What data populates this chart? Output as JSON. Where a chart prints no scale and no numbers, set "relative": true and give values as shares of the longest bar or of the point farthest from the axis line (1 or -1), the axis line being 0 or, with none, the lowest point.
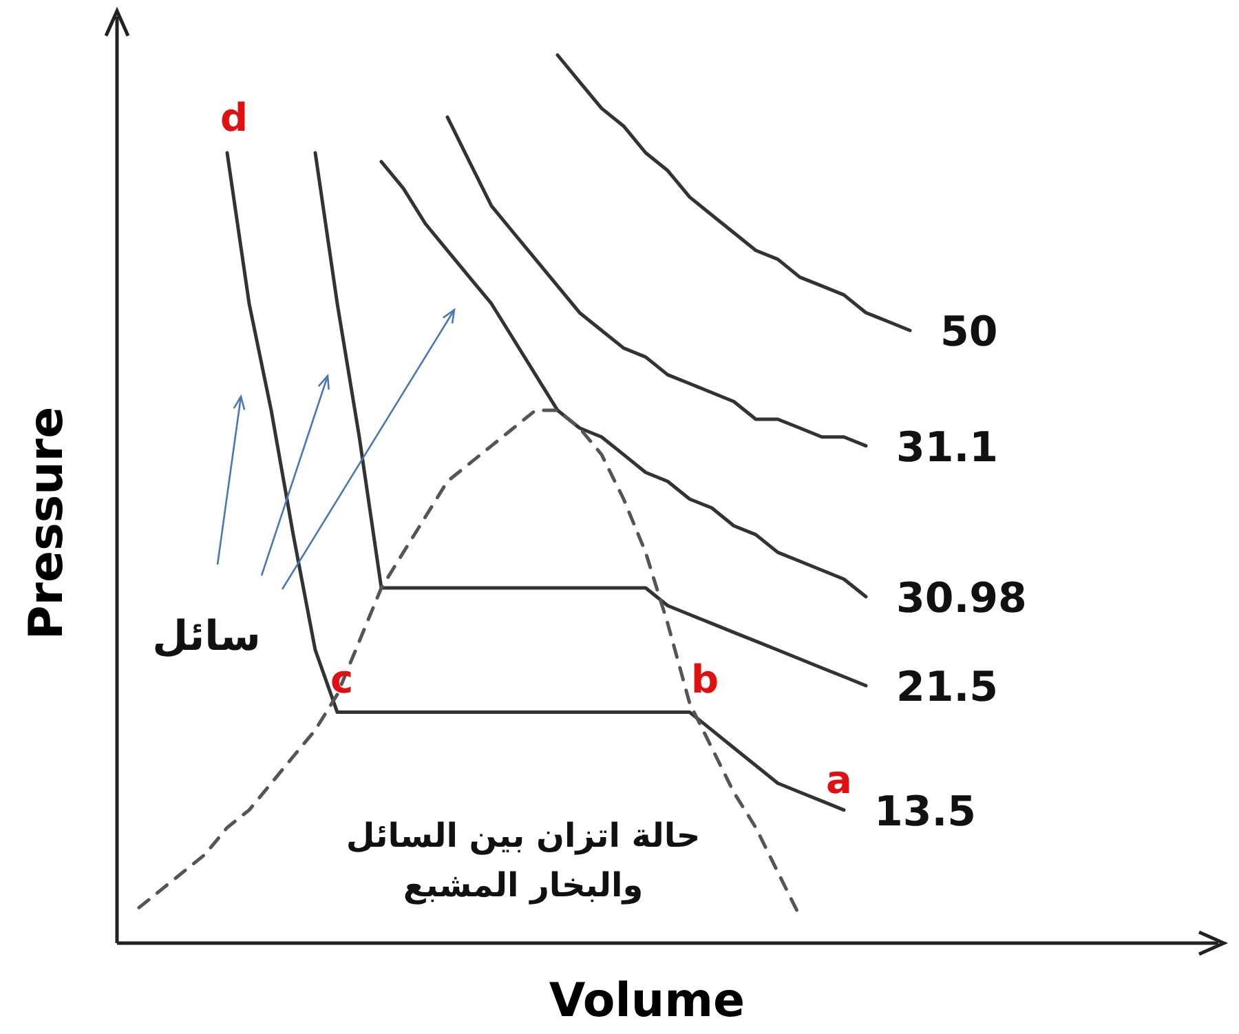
{
  "chart_data": {
    "type": "line",
    "relative": true,
    "xlabel": "Volume",
    "ylabel": "Pressure",
    "categories": [
      null,
      null,
      null,
      null,
      null,
      null,
      null,
      null,
      null,
      null,
      null,
      null,
      null,
      null,
      null,
      null,
      null,
      null,
      null,
      null,
      null,
      null,
      null,
      null,
      null,
      null,
      null,
      null,
      null,
      null,
      null,
      null,
      null,
      null,
      null,
      null,
      null
    ],
    "series": [
      {
        "name": "50",
        "color": "#333333",
        "line_style": "solid",
        "values": [
          null,
          null,
          null,
          null,
          null,
          null,
          null,
          null,
          null,
          null,
          null,
          null,
          null,
          null,
          null,
          null,
          null,
          null,
          null,
          null,
          1,
          0.97,
          0.94,
          0.92,
          0.89,
          0.87,
          0.84,
          0.82,
          0.8,
          0.78,
          0.77,
          0.75,
          0.74,
          0.73,
          0.71,
          0.7,
          0.69
        ]
      },
      {
        "name": "31.1",
        "color": "#333333",
        "line_style": "solid",
        "values": [
          null,
          null,
          null,
          null,
          null,
          null,
          null,
          null,
          null,
          null,
          null,
          null,
          null,
          null,
          null,
          0.93,
          0.88,
          0.83,
          0.8,
          0.77,
          0.74,
          0.71,
          0.69,
          0.67,
          0.66,
          0.64,
          0.63,
          0.62,
          0.61,
          0.59,
          0.59,
          0.58,
          0.57,
          0.57,
          0.56,
          null,
          null
        ]
      },
      {
        "name": "30.98",
        "color": "#333333",
        "line_style": "solid",
        "values": [
          null,
          null,
          null,
          null,
          null,
          null,
          null,
          null,
          null,
          null,
          null,
          null,
          0.88,
          0.85,
          0.81,
          0.78,
          0.75,
          0.72,
          0.68,
          0.64,
          0.6,
          0.58,
          0.57,
          0.55,
          0.53,
          0.52,
          0.5,
          0.49,
          0.47,
          0.46,
          0.44,
          0.43,
          0.42,
          0.41,
          0.39,
          null,
          null
        ]
      },
      {
        "name": "21.5",
        "color": "#333333",
        "line_style": "solid",
        "values": [
          null,
          null,
          null,
          null,
          null,
          null,
          null,
          null,
          null,
          0.89,
          0.72,
          0.57,
          0.4,
          0.4,
          0.4,
          0.4,
          0.4,
          0.4,
          0.4,
          0.4,
          0.4,
          0.4,
          0.4,
          0.4,
          0.4,
          0.38,
          0.37,
          0.36,
          0.35,
          0.34,
          0.33,
          0.32,
          0.31,
          0.3,
          0.29,
          null,
          null
        ]
      },
      {
        "name": "13.5",
        "color": "#333333",
        "line_style": "solid",
        "values": [
          null,
          null,
          null,
          null,
          null,
          0.89,
          0.72,
          0.6,
          0.46,
          0.33,
          0.26,
          0.26,
          0.26,
          0.26,
          0.26,
          0.26,
          0.26,
          0.26,
          0.26,
          0.26,
          0.26,
          0.26,
          0.26,
          0.26,
          0.26,
          0.26,
          0.26,
          0.24,
          0.22,
          0.2,
          0.18,
          0.17,
          0.16,
          0.15,
          null,
          null,
          null
        ]
      },
      {
        "color": "#555555",
        "line_style": "dashed",
        "values": [
          null,
          0.04,
          0.06,
          0.08,
          0.1,
          0.13,
          0.15,
          0.18,
          0.21,
          0.24,
          0.28,
          0.34,
          0.4,
          0.44,
          0.48,
          0.52,
          0.54,
          0.56,
          0.58,
          0.6,
          0.6,
          0.58,
          0.55,
          0.5,
          0.44,
          0.36,
          0.27,
          0.22,
          0.17,
          0.13,
          0.08,
          0.03,
          null,
          null,
          null,
          null,
          null
        ]
      }
    ],
    "annotations": [
      "d",
      "c",
      "b",
      "a",
      "سائل",
      "حالة اتزان بين السائل\nوالبخار المشبع"
    ]
  }
}
